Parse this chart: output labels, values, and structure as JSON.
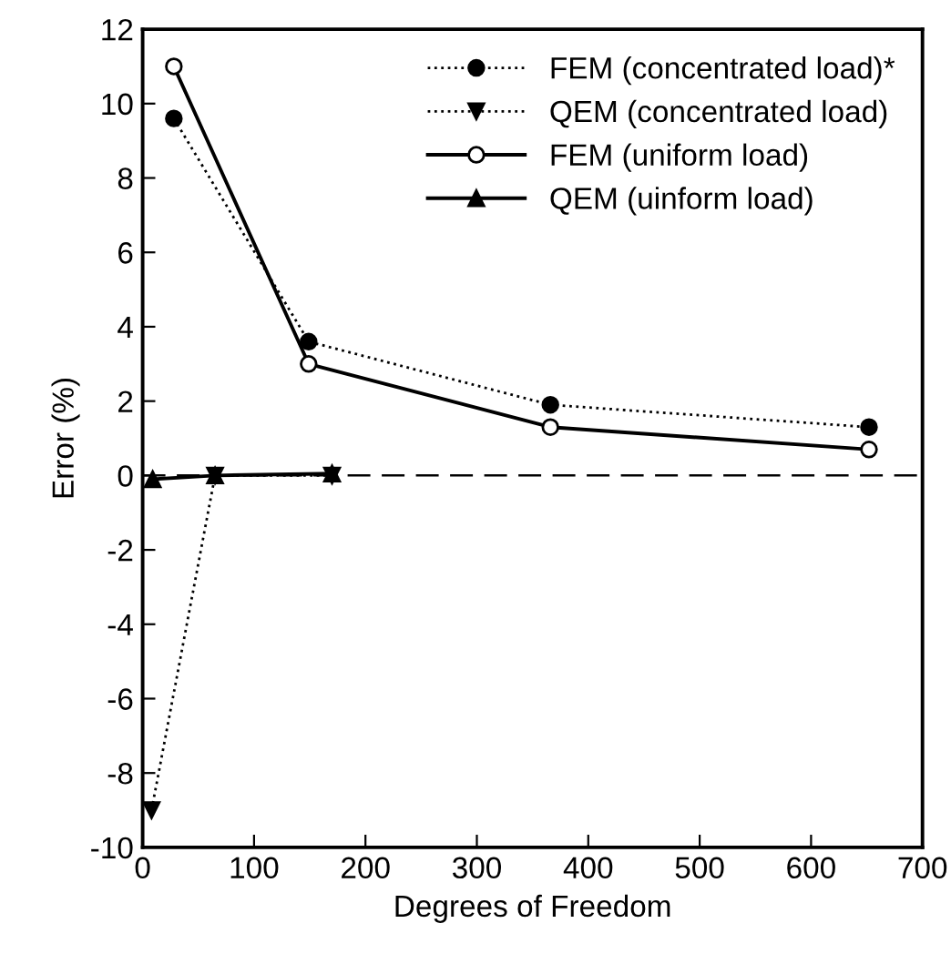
{
  "chart_data": {
    "type": "line",
    "xlabel": "Degrees of Freedom",
    "ylabel": "Error (%)",
    "xlim": [
      0,
      700
    ],
    "xticks": [
      0,
      100,
      200,
      300,
      400,
      500,
      600,
      700
    ],
    "ylim": [
      -10,
      12
    ],
    "yticks": [
      -10,
      -8,
      -6,
      -4,
      -2,
      0,
      2,
      4,
      6,
      8,
      10,
      12
    ],
    "grid": false,
    "legend": "top right",
    "ref_lines": [
      {
        "axis": "y",
        "value": 0,
        "color": "#000000",
        "line_style": "dashed"
      }
    ],
    "series": [
      {
        "name": "FEM (concentrated load)*",
        "color": "#000000",
        "marker": "circle",
        "line_style": "dotted",
        "x": [
          28,
          149,
          366,
          652
        ],
        "values": [
          9.6,
          3.6,
          1.9,
          1.3
        ]
      },
      {
        "name": "QEM (concentrated load)",
        "color": "#000000",
        "marker": "triangle_down",
        "line_style": "dotted",
        "x": [
          8,
          65,
          170
        ],
        "values": [
          -9.0,
          0.0,
          0.0
        ]
      },
      {
        "name": "FEM (uniform load)",
        "color": "#000000",
        "marker": "circle_open",
        "line_style": "solid",
        "x": [
          28,
          149,
          366,
          652
        ],
        "values": [
          11.0,
          3.0,
          1.3,
          0.7
        ]
      },
      {
        "name": "QEM (uinform load)",
        "color": "#000000",
        "marker": "triangle",
        "line_style": "solid",
        "x": [
          9,
          65,
          170
        ],
        "values": [
          -0.1,
          0.0,
          0.05
        ]
      }
    ]
  }
}
